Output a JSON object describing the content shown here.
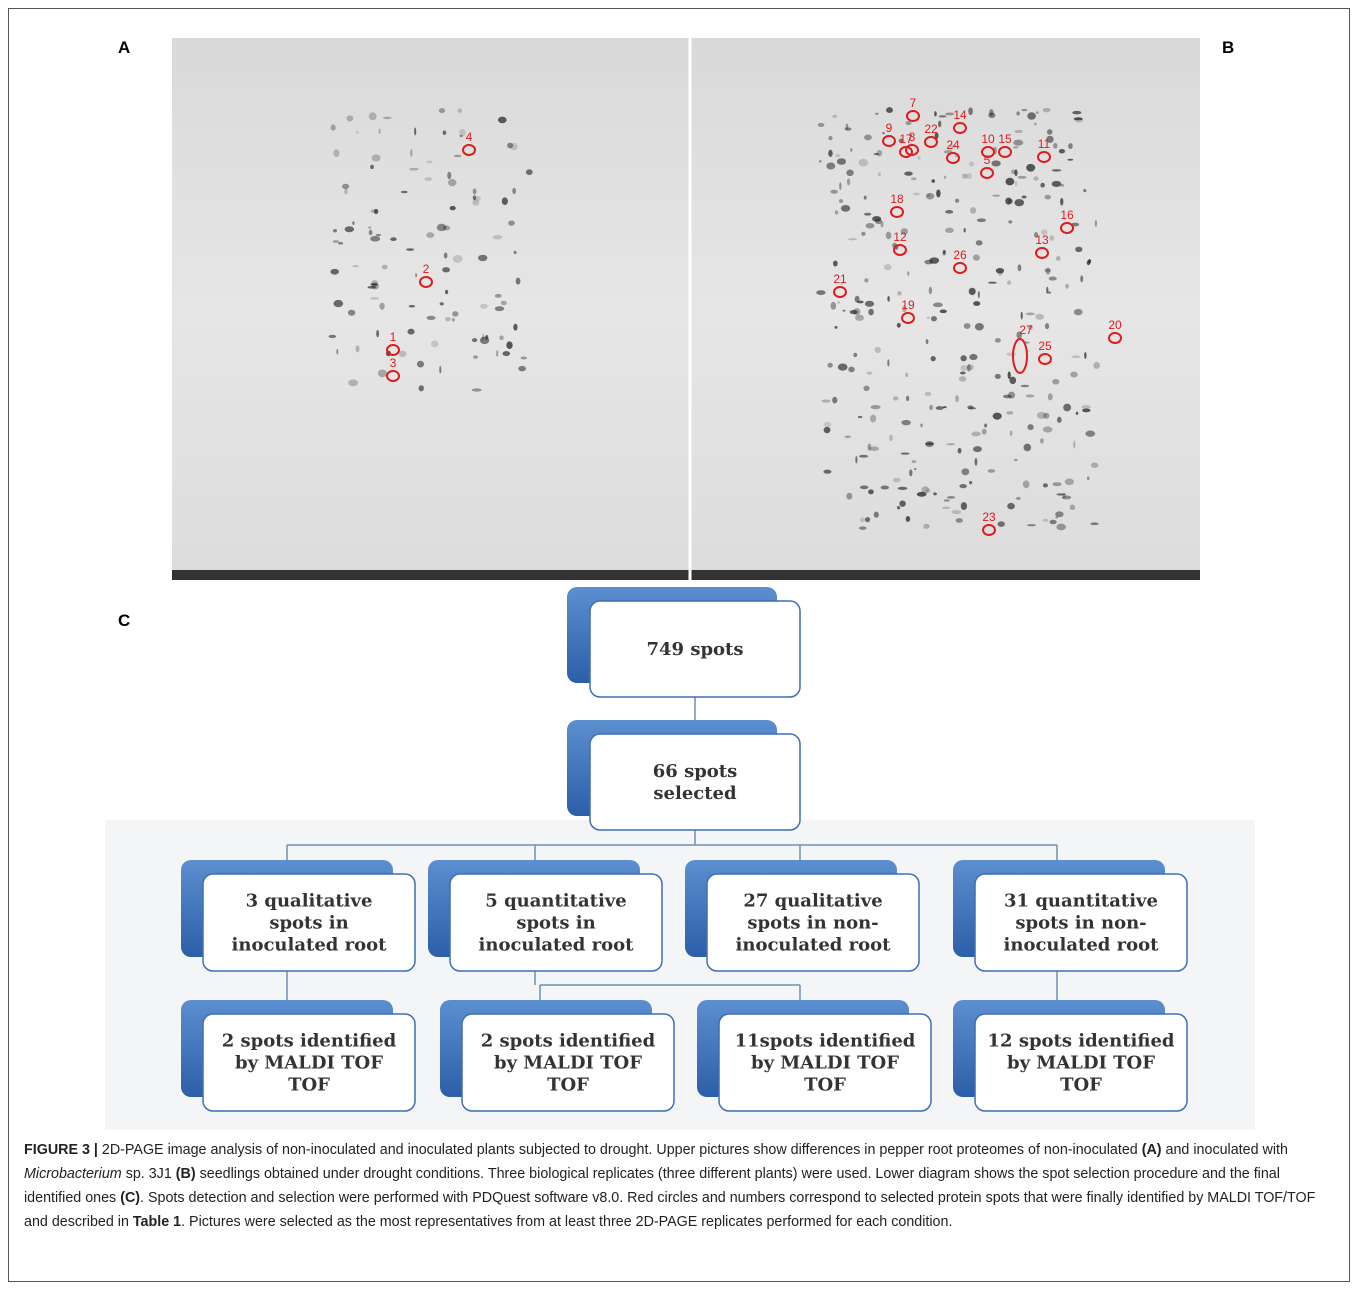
{
  "panels": {
    "a_label": "A",
    "b_label": "B",
    "c_label": "C"
  },
  "gel_a": {
    "spots": [
      "4",
      "2",
      "1",
      "3"
    ]
  },
  "gel_b": {
    "spots": [
      "7",
      "9",
      "8",
      "22",
      "14",
      "10",
      "5",
      "15",
      "11",
      "17",
      "24",
      "18",
      "16",
      "12",
      "13",
      "26",
      "21",
      "19",
      "20",
      "27",
      "25",
      "23"
    ]
  },
  "flowchart": {
    "top": [
      "749 spots"
    ],
    "selected": [
      "66 spots",
      "selected"
    ],
    "groups": [
      [
        "3 qualitative",
        "spots in",
        "inoculated root"
      ],
      [
        "5 quantitative",
        "spots in",
        "inoculated root"
      ],
      [
        "27 qualitative",
        "spots in non-",
        "inoculated root"
      ],
      [
        "31 quantitative",
        "spots in non-",
        "inoculated root"
      ]
    ],
    "identified": [
      [
        "2 spots identified",
        "by MALDI TOF",
        "TOF"
      ],
      [
        "2 spots identified",
        "by MALDI TOF",
        "TOF"
      ],
      [
        "11spots identified",
        "by MALDI TOF",
        "TOF"
      ],
      [
        "12 spots identified",
        "by MALDI TOF",
        "TOF"
      ]
    ]
  },
  "caption": [
    {
      "text": "FIGURE 3 | ",
      "style": "bold"
    },
    {
      "text": "2D-PAGE image analysis of non-inoculated and inoculated plants subjected to drought. Upper pictures show differences in pepper root proteomes of non-inoculated ",
      "style": "normal"
    },
    {
      "text": "(A)",
      "style": "bold"
    },
    {
      "text": " and inoculated with ",
      "style": "normal"
    },
    {
      "text": "Microbacterium",
      "style": "italic"
    },
    {
      "text": " sp. 3J1 ",
      "style": "normal"
    },
    {
      "text": "(B)",
      "style": "bold"
    },
    {
      "text": " seedlings obtained under drought conditions. Three biological replicates (three different plants) were used. Lower diagram shows the spot selection procedure and the final identified ones ",
      "style": "normal"
    },
    {
      "text": "(C)",
      "style": "bold"
    },
    {
      "text": ". Spots detection and selection were performed with PDQuest software v8.0. Red circles and numbers correspond to selected protein spots that were finally identified by MALDI TOF/TOF and described in ",
      "style": "normal"
    },
    {
      "text": "Table 1",
      "style": "bold"
    },
    {
      "text": ". Pictures were selected as the most representatives from at least three 2D-PAGE replicates performed for each condition.",
      "style": "normal"
    }
  ]
}
